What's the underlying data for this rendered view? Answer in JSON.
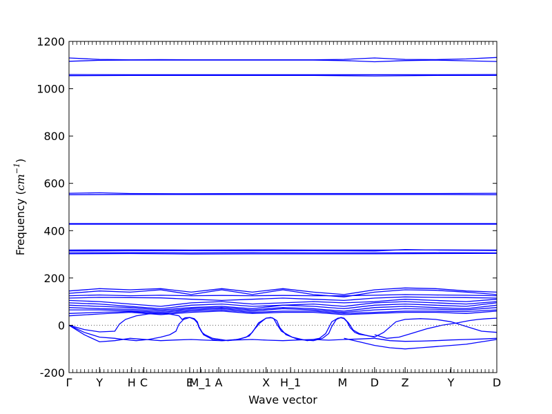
{
  "chart_data": {
    "type": "line",
    "title": "",
    "xlabel": "Wave vector",
    "ylabel": {
      "prefix": "Frequency (",
      "unit": "cm",
      "sup": "−1",
      "suffix": ")"
    },
    "ylim": [
      -200,
      1200
    ],
    "yticks": [
      -200,
      0,
      200,
      400,
      600,
      800,
      1000,
      1200
    ],
    "xlim": [
      0,
      14.0
    ],
    "zero_line": {
      "y": 0,
      "style": "dotted"
    },
    "grid": false,
    "line_color": "#0000ff",
    "high_symmetry_points": [
      {
        "label": "Γ",
        "x": 0.0
      },
      {
        "label": "Y",
        "x": 1.0
      },
      {
        "label": "H",
        "x": 2.05
      },
      {
        "label": "C",
        "x": 2.45
      },
      {
        "label": "E",
        "x": 3.95
      },
      {
        "label": "M_1",
        "x": 4.3
      },
      {
        "label": "A",
        "x": 4.9
      },
      {
        "label": "X",
        "x": 6.45
      },
      {
        "label": "H_1",
        "x": 7.25
      },
      {
        "label": "M",
        "x": 8.95
      },
      {
        "label": "D",
        "x": 10.0
      },
      {
        "label": "Z",
        "x": 11.0
      },
      {
        "label": "Y",
        "x": 12.5
      },
      {
        "label": "D",
        "x": 14.0
      }
    ],
    "series": [
      {
        "x": [
          0,
          1,
          2,
          3,
          4,
          5,
          6,
          7,
          8,
          9,
          10,
          11,
          12,
          13,
          14
        ],
        "values": [
          1130,
          1124,
          1122,
          1123,
          1122,
          1122,
          1122,
          1122,
          1122,
          1124,
          1130,
          1124,
          1123,
          1126,
          1132
        ]
      },
      {
        "x": [
          0,
          1,
          2,
          3,
          4,
          5,
          6,
          7,
          8,
          9,
          10,
          11,
          12,
          13,
          14
        ],
        "values": [
          1116,
          1120,
          1121,
          1121,
          1121,
          1121,
          1121,
          1121,
          1121,
          1119,
          1114,
          1119,
          1121,
          1118,
          1115
        ]
      },
      {
        "x": [
          0,
          2,
          4,
          6,
          8,
          10,
          12,
          14
        ],
        "values": [
          1060,
          1059,
          1059,
          1059,
          1059,
          1059,
          1059,
          1060
        ]
      },
      {
        "x": [
          0,
          2,
          4,
          6,
          8,
          10,
          12,
          14
        ],
        "values": [
          1055,
          1056,
          1056,
          1056,
          1056,
          1054,
          1056,
          1056
        ]
      },
      {
        "x": [
          0,
          1,
          2,
          4,
          6,
          8,
          10,
          12,
          14
        ],
        "values": [
          558,
          560,
          557,
          556,
          557,
          557,
          557,
          557,
          558
        ]
      },
      {
        "x": [
          0,
          2,
          4,
          6,
          8,
          10,
          12,
          14
        ],
        "values": [
          552,
          553,
          553,
          553,
          553,
          553,
          553,
          552
        ]
      },
      {
        "x": [
          0,
          4,
          8,
          14
        ],
        "values": [
          430,
          430,
          430,
          430
        ]
      },
      {
        "x": [
          0,
          4,
          8,
          14
        ],
        "values": [
          427,
          427,
          427,
          427
        ]
      },
      {
        "x": [
          0,
          2,
          4,
          6,
          8,
          10,
          12,
          14
        ],
        "values": [
          318,
          319,
          318,
          319,
          318,
          318,
          319,
          318
        ]
      },
      {
        "x": [
          0,
          2,
          4,
          6,
          8,
          10,
          11,
          12,
          14
        ],
        "values": [
          314,
          315,
          315,
          315,
          315,
          314,
          320,
          318,
          316
        ]
      },
      {
        "x": [
          0,
          2,
          4,
          6,
          8,
          10,
          12,
          14
        ],
        "values": [
          306,
          307,
          306,
          307,
          306,
          306,
          307,
          306
        ]
      },
      {
        "x": [
          0,
          2,
          4,
          6,
          8,
          10,
          12,
          14
        ],
        "values": [
          302,
          303,
          301,
          302,
          302,
          302,
          303,
          304
        ]
      },
      {
        "x": [
          0,
          1,
          2,
          3,
          4,
          5,
          6,
          7,
          8,
          9,
          10,
          11,
          12,
          13,
          14
        ],
        "values": [
          145,
          155,
          150,
          155,
          140,
          155,
          140,
          155,
          140,
          130,
          150,
          158,
          155,
          145,
          140
        ]
      },
      {
        "x": [
          0,
          1,
          2,
          3,
          4,
          5,
          6,
          7,
          8,
          9,
          10,
          11,
          12,
          13,
          14
        ],
        "values": [
          135,
          145,
          140,
          150,
          130,
          150,
          130,
          150,
          130,
          120,
          140,
          150,
          148,
          140,
          130
        ]
      },
      {
        "x": [
          0,
          1,
          2,
          3,
          4,
          5,
          6,
          7,
          8,
          9,
          10,
          11,
          12,
          13,
          14
        ],
        "values": [
          125,
          128,
          125,
          127,
          125,
          126,
          125,
          126,
          125,
          125,
          127,
          130,
          128,
          127,
          125
        ]
      },
      {
        "x": [
          0,
          1,
          2,
          3,
          4,
          5,
          6,
          7,
          8,
          9,
          10,
          11,
          12,
          13,
          14
        ],
        "values": [
          115,
          118,
          117,
          116,
          110,
          105,
          110,
          115,
          110,
          105,
          115,
          120,
          118,
          117,
          115
        ]
      },
      {
        "x": [
          0,
          1,
          2,
          3,
          4,
          5,
          6,
          7,
          8,
          9,
          10,
          11,
          12,
          13,
          14
        ],
        "values": [
          105,
          100,
          90,
          80,
          95,
          100,
          90,
          95,
          100,
          95,
          100,
          110,
          105,
          100,
          110
        ]
      },
      {
        "x": [
          0,
          1,
          2,
          3,
          4,
          5,
          6,
          7,
          8,
          9,
          10,
          11,
          12,
          13,
          14
        ],
        "values": [
          95,
          90,
          80,
          70,
          85,
          90,
          80,
          85,
          90,
          80,
          95,
          100,
          95,
          90,
          100
        ]
      },
      {
        "x": [
          0,
          1,
          2,
          3,
          4,
          5,
          6,
          7,
          8,
          9,
          10,
          11,
          12,
          13,
          14
        ],
        "values": [
          85,
          80,
          75,
          65,
          75,
          80,
          70,
          85,
          80,
          70,
          85,
          90,
          85,
          80,
          95
        ]
      },
      {
        "x": [
          0,
          1,
          2,
          3,
          4,
          5,
          6,
          7,
          8,
          9,
          10,
          11,
          12,
          13,
          14
        ],
        "values": [
          75,
          70,
          68,
          60,
          70,
          75,
          65,
          75,
          70,
          60,
          75,
          80,
          75,
          70,
          85
        ]
      },
      {
        "x": [
          0,
          1,
          2,
          3,
          4,
          5,
          6,
          7,
          8,
          9,
          10,
          11,
          12,
          13,
          14
        ],
        "values": [
          65,
          65,
          62,
          55,
          65,
          70,
          60,
          70,
          65,
          55,
          65,
          70,
          68,
          65,
          75
        ]
      },
      {
        "x": [
          0,
          1,
          2,
          3,
          4,
          5,
          6,
          7,
          8,
          9,
          10,
          11,
          12,
          13,
          14
        ],
        "values": [
          50,
          55,
          58,
          50,
          60,
          65,
          55,
          60,
          60,
          50,
          55,
          60,
          60,
          58,
          65
        ]
      },
      {
        "x": [
          0,
          1,
          2,
          3,
          4,
          5,
          6,
          7,
          8,
          9,
          10,
          11,
          12,
          13,
          14
        ],
        "values": [
          40,
          48,
          55,
          45,
          55,
          60,
          50,
          55,
          55,
          45,
          50,
          55,
          55,
          50,
          60
        ]
      },
      {
        "x": [
          0,
          0.5,
          1.0,
          1.5,
          1.65,
          1.85,
          2.2,
          2.6,
          3.2,
          3.6,
          3.7,
          3.8,
          3.95,
          4.1,
          4.2,
          4.25,
          4.35,
          4.45,
          4.7,
          5.2,
          5.6,
          5.9,
          6.05,
          6.25,
          6.45,
          6.6,
          6.7,
          6.8,
          6.95,
          7.3,
          7.8,
          8.2,
          8.4,
          8.5,
          8.6,
          8.8,
          8.9,
          9.0,
          9.1,
          9.2,
          9.35,
          9.5,
          9.7,
          10.0
        ],
        "values": [
          0,
          -18,
          -28,
          -25,
          5,
          25,
          40,
          48,
          50,
          40,
          25,
          32,
          33,
          25,
          10,
          -8,
          -30,
          -40,
          -55,
          -65,
          -58,
          -45,
          -20,
          10,
          30,
          33,
          28,
          5,
          -25,
          -50,
          -65,
          -55,
          -35,
          -10,
          15,
          30,
          32,
          28,
          15,
          -10,
          -30,
          -38,
          -42,
          -50
        ]
      },
      {
        "x": [
          0,
          0.5,
          1.0,
          1.5,
          1.8,
          2.2,
          2.6,
          3.0,
          3.3,
          3.5,
          3.6,
          3.75,
          3.95,
          4.1,
          4.2,
          4.25,
          4.4,
          4.7,
          5.0,
          5.5,
          5.8,
          6.0,
          6.2,
          6.45,
          6.65,
          6.8,
          6.9,
          7.1,
          7.5,
          8.0,
          8.3,
          8.5,
          8.6,
          8.75,
          8.9,
          9.0,
          9.15,
          9.3,
          9.5,
          9.8,
          10.0
        ],
        "values": [
          0,
          -30,
          -50,
          -55,
          -60,
          -65,
          -60,
          -50,
          -40,
          -25,
          5,
          25,
          33,
          28,
          15,
          -5,
          -40,
          -60,
          -65,
          -60,
          -50,
          -30,
          10,
          30,
          32,
          20,
          -10,
          -40,
          -60,
          -65,
          -55,
          -35,
          -5,
          25,
          33,
          30,
          10,
          -20,
          -35,
          -45,
          -48
        ]
      },
      {
        "x": [
          0,
          0.5,
          1.0,
          1.5,
          2.0,
          2.5,
          3.0,
          3.5,
          4.0,
          4.5,
          5.0,
          5.5,
          6.0,
          6.5,
          7.0,
          7.5,
          8.0,
          8.5,
          9.0,
          9.5,
          10.0
        ],
        "values": [
          0,
          -40,
          -70,
          -65,
          -55,
          -60,
          -65,
          -62,
          -60,
          -63,
          -65,
          -62,
          -60,
          -63,
          -65,
          -62,
          -60,
          -63,
          -60,
          -58,
          -55
        ]
      },
      {
        "x": [
          10.0,
          10.3,
          10.7,
          11.0,
          11.5,
          12.0,
          12.5,
          13.0,
          13.5,
          14.0
        ],
        "values": [
          -50,
          -30,
          15,
          25,
          28,
          25,
          15,
          -5,
          -25,
          -30
        ]
      },
      {
        "x": [
          10.0,
          10.4,
          10.8,
          11.2,
          11.7,
          12.2,
          12.7,
          13.1,
          13.4,
          13.7,
          14.0
        ],
        "values": [
          -40,
          -55,
          -50,
          -35,
          -15,
          0,
          10,
          20,
          25,
          28,
          30
        ]
      },
      {
        "x": [
          10.0,
          10.5,
          11.0,
          11.5,
          12.0,
          12.5,
          13.0,
          13.5,
          14.0
        ],
        "values": [
          -55,
          -65,
          -68,
          -67,
          -65,
          -62,
          -60,
          -58,
          -55
        ]
      },
      {
        "x": [
          9.0,
          9.5,
          10.0,
          10.5,
          11.0,
          11.5,
          12.0,
          12.5,
          13.0,
          13.5,
          14.0
        ],
        "values": [
          -55,
          -70,
          -85,
          -95,
          -100,
          -95,
          -90,
          -85,
          -80,
          -70,
          -60
        ]
      }
    ]
  }
}
